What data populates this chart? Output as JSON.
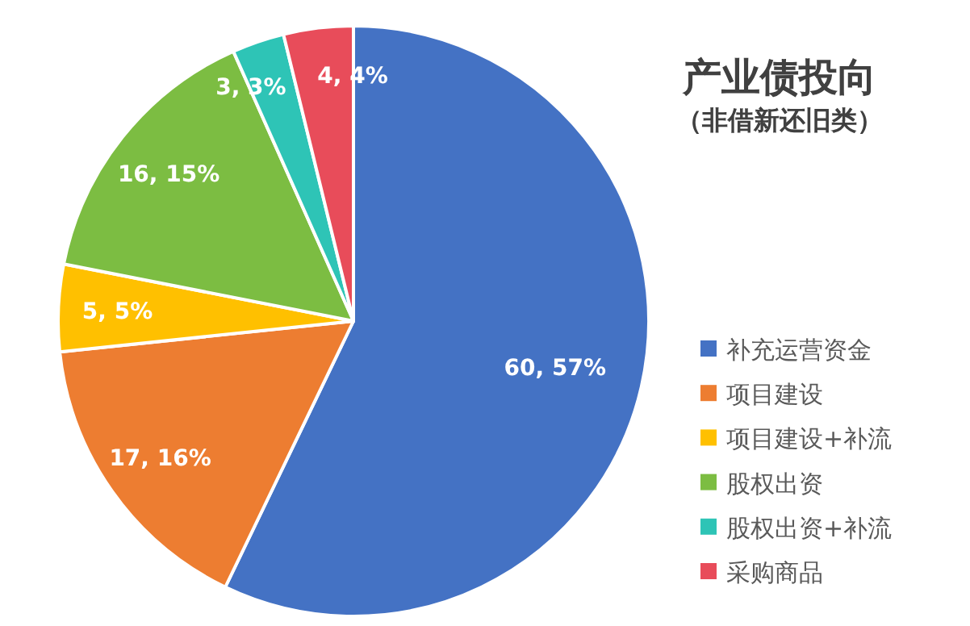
{
  "chart_data": {
    "type": "pie",
    "title": "产业债投向",
    "subtitle": "（非借新还旧类）",
    "categories": [
      "补充运营资金",
      "项目建设",
      "项目建设+补流",
      "股权出资",
      "股权出资+补流",
      "采购商品"
    ],
    "values": [
      60,
      17,
      5,
      16,
      3,
      4
    ],
    "colors": [
      "#4472c4",
      "#ed7d31",
      "#ffc000",
      "#7cbd42",
      "#2ec4b6",
      "#e84c5a"
    ],
    "value_labels": [
      "60, 57%",
      "17, 16%",
      "5, 5%",
      "16, 15%",
      "3, 3%",
      "4, 4%"
    ],
    "legend": "right"
  }
}
